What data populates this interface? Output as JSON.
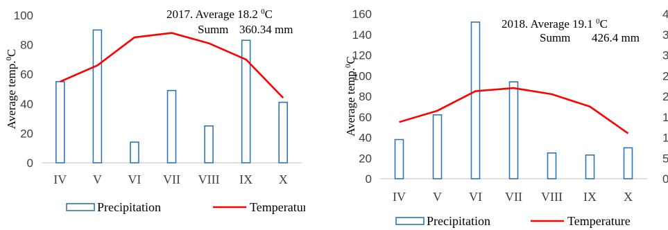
{
  "chart_data": [
    {
      "type": "bar",
      "ylabel_main": "Average temp.",
      "ylabel_unit": "C",
      "ylabel_sup": "0",
      "ylim": [
        0,
        100
      ],
      "yticks": [
        "0",
        "20",
        "40",
        "60",
        "80",
        "100"
      ],
      "categories": [
        "IV",
        "V",
        "VI",
        "VII",
        "VIII",
        "IX",
        "X"
      ],
      "annotation": {
        "line1_main": "2017. Average 18.2 ",
        "line1_sup": "0",
        "line1_unit": "C",
        "line2_label": "Summ",
        "line2_value": "360.34 mm"
      },
      "series": [
        {
          "name": "Precipitation",
          "kind": "bar",
          "color": "#2e75b6",
          "values": [
            55,
            90,
            14,
            49,
            25,
            83,
            41
          ]
        },
        {
          "name": "Temperature",
          "kind": "line",
          "color": "#ff0000",
          "values": [
            55,
            66,
            85,
            88,
            81,
            70,
            44
          ]
        }
      ]
    },
    {
      "type": "bar",
      "ylabel_main": "Average temp.",
      "ylabel_unit": "C",
      "ylabel_sup": "0",
      "ylim": [
        0,
        160
      ],
      "yticks": [
        "0",
        "20",
        "40",
        "60",
        "80",
        "100",
        "120",
        "140",
        "160"
      ],
      "right_axis_fragments": [
        "4",
        "3",
        "3",
        "2",
        "2",
        "1",
        "1",
        "5",
        "0"
      ],
      "categories": [
        "IV",
        "V",
        "VI",
        "VII",
        "VIII",
        "IX",
        "X"
      ],
      "annotation": {
        "line1_main": "2018. Average 19.1 ",
        "line1_sup": "0",
        "line1_unit": "C",
        "line2_label": "Summ",
        "line2_value": "426.4 mm"
      },
      "series": [
        {
          "name": "Precipitation",
          "kind": "bar",
          "color": "#2e75b6",
          "values": [
            38,
            62,
            152,
            94,
            25,
            23,
            30
          ]
        },
        {
          "name": "Temperature",
          "kind": "line",
          "color": "#ff0000",
          "values": [
            55,
            66,
            85,
            88,
            82,
            70,
            44
          ]
        }
      ]
    }
  ],
  "legend": {
    "precipitation": "Precipitation",
    "temperature": "Temperature"
  }
}
